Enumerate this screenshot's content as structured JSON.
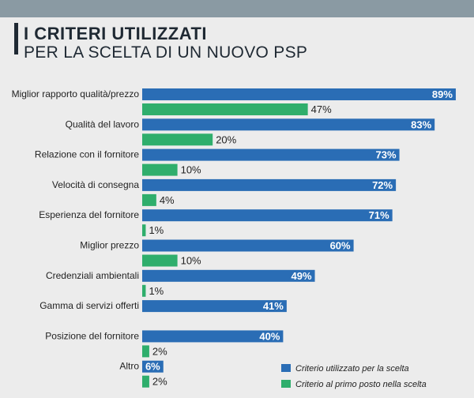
{
  "header": {
    "title": "I CRITERI UTILIZZATI",
    "subtitle": "PER LA SCELTA DI UN NUOVO PSP"
  },
  "colors": {
    "blue": "#2a6db5",
    "green": "#2fae6c"
  },
  "chart_data": {
    "type": "bar",
    "orientation": "horizontal",
    "categories": [
      "Miglior rapporto qualità/prezzo",
      "Qualità del lavoro",
      "Relazione con il fornitore",
      "Velocità di consegna",
      "Esperienza del fornitore",
      "Miglior prezzo",
      "Credenziali ambientali",
      "Gamma di servizi offerti",
      "Posizione del fornitore",
      "Altro"
    ],
    "series": [
      {
        "name": "Criterio utilizzato per la scelta",
        "values": [
          89,
          83,
          73,
          72,
          71,
          60,
          49,
          41,
          40,
          6
        ],
        "labels": [
          "89%",
          "83%",
          "73%",
          "72%",
          "71%",
          "60%",
          "49%",
          "41%",
          "40%",
          "6%"
        ]
      },
      {
        "name": "Criterio al primo posto nella scelta",
        "values": [
          47,
          20,
          10,
          4,
          1,
          10,
          1,
          null,
          2,
          2
        ],
        "labels": [
          "47%",
          "20%",
          "10%",
          "4%",
          "1%",
          "10%",
          "1%",
          "",
          "2%",
          "2%"
        ]
      }
    ],
    "unit": "%",
    "xlim": [
      0,
      100
    ],
    "legend_position": "bottom-right",
    "grid": false
  }
}
